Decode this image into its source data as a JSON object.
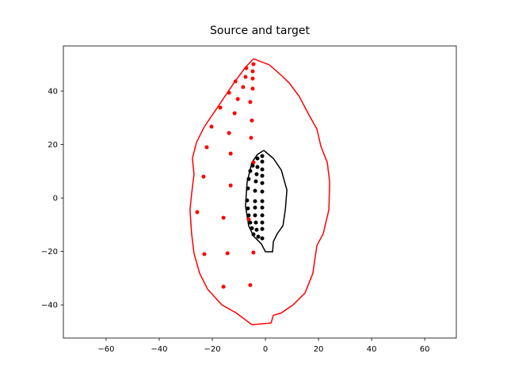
{
  "chart_data": {
    "type": "scatter",
    "title": "Source and target",
    "xlim": [
      -76.1,
      71.9
    ],
    "ylim": [
      -52.4,
      56.9
    ],
    "xticks": [
      {
        "value": -60,
        "label": "−60"
      },
      {
        "value": -40,
        "label": "−40"
      },
      {
        "value": -20,
        "label": "−20"
      },
      0,
      20,
      40,
      60
    ],
    "yticks": [
      {
        "value": -40,
        "label": "−40"
      },
      {
        "value": -20,
        "label": "−20"
      },
      0,
      20,
      40
    ],
    "series": [
      {
        "mode": "line",
        "color": "#ff0000",
        "x": [
          -4.5,
          1.5,
          6,
          9,
          12.8,
          16.4,
          19.4,
          20.9,
          23.3,
          24.2,
          23.9,
          21.8,
          19.4,
          18.5,
          17.9,
          14.9,
          10.4,
          6,
          3,
          2.1,
          -5.1,
          -11,
          -16.4,
          -21.8,
          -24.8,
          -26.9,
          -27.8,
          -28.4,
          -27.8,
          -26.9,
          -27.5,
          -26,
          -23,
          -17.9,
          -11.9,
          -7.5,
          -4.5
        ],
        "values": [
          52.1,
          49.8,
          45.9,
          43,
          37.9,
          31.1,
          25.8,
          19.3,
          13.3,
          5.9,
          -4.4,
          -13.3,
          -17.8,
          -23.7,
          -28.1,
          -35.6,
          -40,
          -43,
          -43.9,
          -46.8,
          -47.4,
          -43,
          -40,
          -34.1,
          -28.1,
          -20.7,
          -13.3,
          -4.4,
          1.5,
          8.9,
          14.8,
          20.7,
          26.7,
          34.1,
          43,
          48.9,
          52.1
        ]
      },
      {
        "mode": "line",
        "color": "#000000",
        "x": [
          -0.6,
          3,
          6,
          8.1,
          7.5,
          6.6,
          4.5,
          3,
          2.7,
          0,
          -1.5,
          -4.5,
          -6.3,
          -7.5,
          -6.9,
          -5.1,
          -3,
          -0.6
        ],
        "values": [
          17.8,
          14.8,
          10.4,
          3,
          -4.4,
          -10.4,
          -13.3,
          -16.3,
          -20.1,
          -20.1,
          -17.2,
          -14.2,
          -10.4,
          -3,
          5.9,
          13.3,
          16.3,
          17.8
        ]
      },
      {
        "mode": "points",
        "color": "#ff0000",
        "x": [
          -4.5,
          -4.8,
          -7.2,
          -4.8,
          -7.5,
          -11.3,
          -8.4,
          -4.8,
          -13.7,
          -10.4,
          -5.7,
          -17,
          -11.6,
          -5.1,
          -20.3,
          -13.7,
          -5.4,
          -22.1,
          -13.1,
          -4.5,
          -23.3,
          -13.1,
          -25.7,
          -15.8,
          -6.3,
          -23,
          -14.3,
          -4.5,
          -15.8,
          -5.7
        ],
        "values": [
          50.1,
          47.4,
          48.6,
          44.7,
          45.3,
          43.6,
          41.5,
          40.9,
          39.4,
          37,
          35.9,
          33.8,
          31.7,
          29,
          26.7,
          24.3,
          22.5,
          19,
          16.6,
          13.3,
          8,
          4.7,
          -5.3,
          -7.4,
          -8,
          -21,
          -20.7,
          -20.4,
          -33.2,
          -32.6
        ]
      },
      {
        "mode": "points",
        "color": "#000000",
        "x": [
          -1.2,
          -3,
          -1.2,
          -4.8,
          -3,
          -1.2,
          -5.7,
          -3.3,
          -1.2,
          -6.3,
          -3.6,
          -1.2,
          -6.6,
          -3.9,
          -1.2,
          -6.9,
          -3.9,
          -1.2,
          -6.6,
          -3.9,
          -1.2,
          -6.3,
          -3.9,
          -1.2,
          -5.7,
          -3.6,
          -1.2,
          -5.1,
          -3.3,
          -1.2,
          -4.5,
          -2.7,
          -1.2
        ],
        "values": [
          15.7,
          14.8,
          13.6,
          12.1,
          11.6,
          10.7,
          10.1,
          8.9,
          8.3,
          7.1,
          6.2,
          5.6,
          3.6,
          2.7,
          2.4,
          -0.9,
          -1.2,
          -1.2,
          -3.9,
          -3.6,
          -3.6,
          -6.5,
          -6.5,
          -6.5,
          -9.2,
          -9.2,
          -9.2,
          -11.3,
          -11.9,
          -11.6,
          -13.6,
          -14.5,
          -15.1
        ]
      }
    ]
  }
}
